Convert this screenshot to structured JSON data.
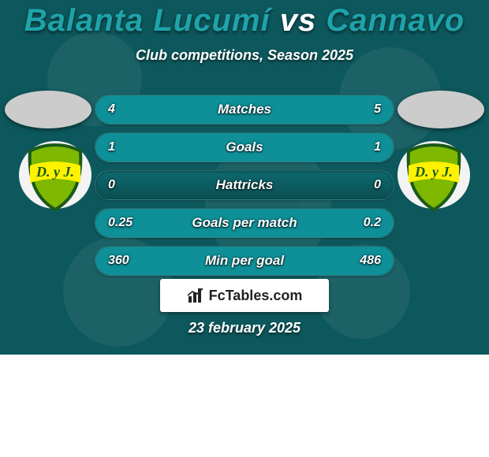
{
  "background_color": "#0d585c",
  "title": {
    "left": {
      "text": "Balanta Lucumí",
      "color": "#1fa3aa"
    },
    "vs": {
      "text": " vs ",
      "color": "#ffffff"
    },
    "right": {
      "text": "Cannavo",
      "color": "#1fa3aa"
    },
    "fontsize": 40
  },
  "subtitle": {
    "text": "Club competitions, Season 2025",
    "fontsize": 18
  },
  "left_fill_color": "#0f8f97",
  "right_fill_color": "#0f8f97",
  "stats": [
    {
      "label": "Matches",
      "left_value": "4",
      "right_value": "5",
      "left_pct": 44,
      "right_pct": 56
    },
    {
      "label": "Goals",
      "left_value": "1",
      "right_value": "1",
      "left_pct": 50,
      "right_pct": 50
    },
    {
      "label": "Hattricks",
      "left_value": "0",
      "right_value": "0",
      "left_pct": 0,
      "right_pct": 0
    },
    {
      "label": "Goals per match",
      "left_value": "0.25",
      "right_value": "0.2",
      "left_pct": 56,
      "right_pct": 44
    },
    {
      "label": "Min per goal",
      "left_value": "360",
      "right_value": "486",
      "left_pct": 43,
      "right_pct": 57
    }
  ],
  "club_badge": {
    "shield_fill": "#7fb800",
    "shield_stroke": "#1a5a1a",
    "band_color": "#fff200",
    "band_text": "D. y J.",
    "band_text_color": "#1a5a1a"
  },
  "site": {
    "text": "FcTables.com"
  },
  "date": {
    "text": "23 february 2025"
  }
}
